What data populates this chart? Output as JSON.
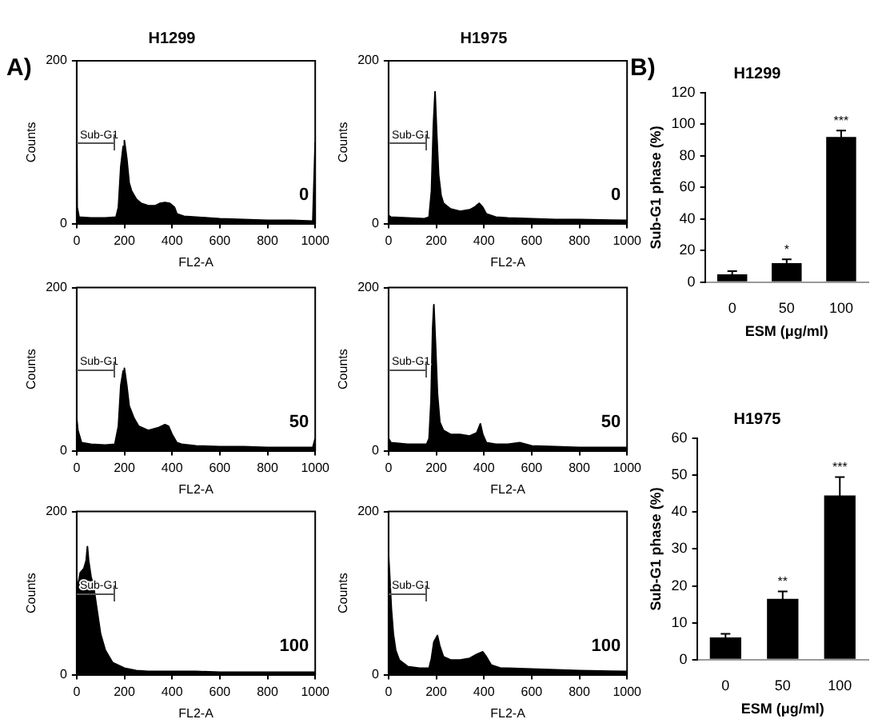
{
  "chart_data": [
    {
      "type": "area",
      "title": "H1299",
      "xlabel": "FL2-A",
      "ylabel": "Counts",
      "xlim": [
        0,
        1000
      ],
      "xticks": [
        0,
        200,
        400,
        600,
        800,
        1000
      ],
      "ylim": [
        0,
        200
      ],
      "yticks": [
        0,
        200
      ],
      "annotations": [
        "A)",
        "Sub-G1",
        "0"
      ],
      "series": [
        {
          "color": "#000000",
          "x": [
            0,
            2,
            10,
            60,
            120,
            165,
            175,
            185,
            195,
            200,
            210,
            220,
            230,
            250,
            270,
            300,
            330,
            350,
            370,
            390,
            410,
            420,
            450,
            500,
            550,
            600,
            700,
            800,
            900,
            990,
            1000
          ],
          "values": [
            144,
            20,
            8,
            7,
            7,
            8,
            20,
            70,
            95,
            102,
            80,
            50,
            40,
            30,
            25,
            22,
            22,
            25,
            26,
            25,
            20,
            12,
            9,
            8,
            7,
            6,
            5,
            4,
            4,
            3,
            100
          ]
        }
      ]
    },
    {
      "type": "area",
      "title": "H1975",
      "xlabel": "FL2-A",
      "ylabel": "Counts",
      "xlim": [
        0,
        1000
      ],
      "xticks": [
        0,
        200,
        400,
        600,
        800,
        1000
      ],
      "ylim": [
        0,
        200
      ],
      "yticks": [
        0,
        200
      ],
      "annotations": [
        "Sub-G1",
        "0"
      ],
      "series": [
        {
          "color": "#000000",
          "x": [
            0,
            10,
            80,
            150,
            170,
            180,
            188,
            195,
            202,
            210,
            220,
            230,
            260,
            300,
            340,
            360,
            380,
            395,
            410,
            450,
            500,
            600,
            700,
            800,
            1000
          ],
          "values": [
            10,
            8,
            7,
            6,
            8,
            40,
            120,
            162,
            110,
            60,
            35,
            25,
            18,
            15,
            17,
            20,
            25,
            20,
            12,
            8,
            7,
            6,
            5,
            5,
            4
          ]
        }
      ]
    },
    {
      "type": "area",
      "xlabel": "FL2-A",
      "ylabel": "Counts",
      "xlim": [
        0,
        1000
      ],
      "xticks": [
        0,
        200,
        400,
        600,
        800,
        1000
      ],
      "ylim": [
        0,
        200
      ],
      "yticks": [
        0,
        200
      ],
      "annotations": [
        "Sub-G1",
        "50"
      ],
      "series": [
        {
          "color": "#000000",
          "x": [
            0,
            5,
            20,
            60,
            120,
            160,
            175,
            185,
            195,
            200,
            210,
            220,
            240,
            260,
            300,
            340,
            370,
            385,
            400,
            420,
            440,
            500,
            600,
            700,
            800,
            900,
            990,
            1000
          ],
          "values": [
            40,
            25,
            10,
            8,
            7,
            8,
            30,
            80,
            98,
            101,
            80,
            55,
            40,
            30,
            25,
            28,
            32,
            30,
            20,
            10,
            8,
            6,
            5,
            5,
            4,
            4,
            4,
            15
          ]
        }
      ]
    },
    {
      "type": "area",
      "xlabel": "FL2-A",
      "ylabel": "Counts",
      "xlim": [
        0,
        1000
      ],
      "xticks": [
        0,
        200,
        400,
        600,
        800,
        1000
      ],
      "ylim": [
        0,
        200
      ],
      "yticks": [
        0,
        200
      ],
      "annotations": [
        "Sub-G1",
        "50"
      ],
      "series": [
        {
          "color": "#000000",
          "x": [
            0,
            10,
            80,
            160,
            170,
            178,
            185,
            190,
            197,
            205,
            215,
            230,
            260,
            300,
            340,
            370,
            385,
            395,
            410,
            450,
            500,
            550,
            600,
            700,
            800,
            1000
          ],
          "values": [
            15,
            10,
            8,
            8,
            15,
            60,
            150,
            179,
            130,
            70,
            35,
            25,
            20,
            20,
            18,
            22,
            33,
            20,
            10,
            8,
            8,
            10,
            6,
            5,
            4,
            4
          ]
        }
      ]
    },
    {
      "type": "area",
      "xlabel": "FL2-A",
      "ylabel": "Counts",
      "xlim": [
        0,
        1000
      ],
      "xticks": [
        0,
        200,
        400,
        600,
        800,
        1000
      ],
      "ylim": [
        0,
        200
      ],
      "yticks": [
        0,
        200
      ],
      "annotations": [
        "Sub-G1",
        "100"
      ],
      "series": [
        {
          "color": "#000000",
          "x": [
            0,
            5,
            15,
            30,
            40,
            45,
            50,
            60,
            70,
            80,
            90,
            100,
            120,
            150,
            200,
            250,
            300,
            400,
            500,
            600,
            700,
            800,
            900,
            1000
          ],
          "values": [
            60,
            110,
            125,
            130,
            140,
            157,
            140,
            120,
            110,
            90,
            70,
            50,
            30,
            15,
            8,
            5,
            4,
            4,
            4,
            3,
            3,
            3,
            3,
            3
          ]
        }
      ]
    },
    {
      "type": "area",
      "xlabel": "FL2-A",
      "ylabel": "Counts",
      "xlim": [
        0,
        1000
      ],
      "xticks": [
        0,
        200,
        400,
        600,
        800,
        1000
      ],
      "ylim": [
        0,
        200
      ],
      "yticks": [
        0,
        200
      ],
      "annotations": [
        "Sub-G1",
        "100"
      ],
      "series": [
        {
          "color": "#000000",
          "x": [
            0,
            5,
            12,
            20,
            30,
            45,
            80,
            130,
            170,
            180,
            190,
            205,
            215,
            230,
            260,
            300,
            340,
            370,
            395,
            410,
            430,
            470,
            500,
            600,
            700,
            800,
            1000
          ],
          "values": [
            147,
            120,
            80,
            50,
            30,
            18,
            10,
            8,
            8,
            20,
            40,
            48,
            35,
            22,
            18,
            18,
            20,
            25,
            28,
            22,
            12,
            8,
            8,
            7,
            6,
            5,
            4
          ]
        }
      ]
    },
    {
      "type": "bar",
      "title": "H1299",
      "xlabel": "ESM (μg/ml)",
      "ylabel": "Sub-G1 phase (%)",
      "categories": [
        "0",
        "50",
        "100"
      ],
      "ylim": [
        0,
        120
      ],
      "yticks": [
        0,
        20,
        40,
        60,
        80,
        100,
        120
      ],
      "color": "#000000",
      "values": [
        5,
        12,
        92
      ],
      "errors": [
        2,
        2.5,
        4
      ],
      "annotations": [
        "B)",
        {
          "text": "*",
          "x": "50",
          "y": 14.5
        },
        {
          "text": "***",
          "x": "100",
          "y": 96
        }
      ]
    },
    {
      "type": "bar",
      "title": "H1975",
      "xlabel": "ESM (μg/ml)",
      "ylabel": "Sub-G1 phase (%)",
      "categories": [
        "0",
        "50",
        "100"
      ],
      "ylim": [
        0,
        60
      ],
      "yticks": [
        0,
        10,
        20,
        30,
        40,
        50,
        60
      ],
      "color": "#000000",
      "values": [
        6,
        16.5,
        44.5
      ],
      "errors": [
        1,
        2,
        5
      ],
      "annotations": [
        {
          "text": "**",
          "x": "50",
          "y": 18.5
        },
        {
          "text": "***",
          "x": "100",
          "y": 49.5
        }
      ]
    }
  ]
}
